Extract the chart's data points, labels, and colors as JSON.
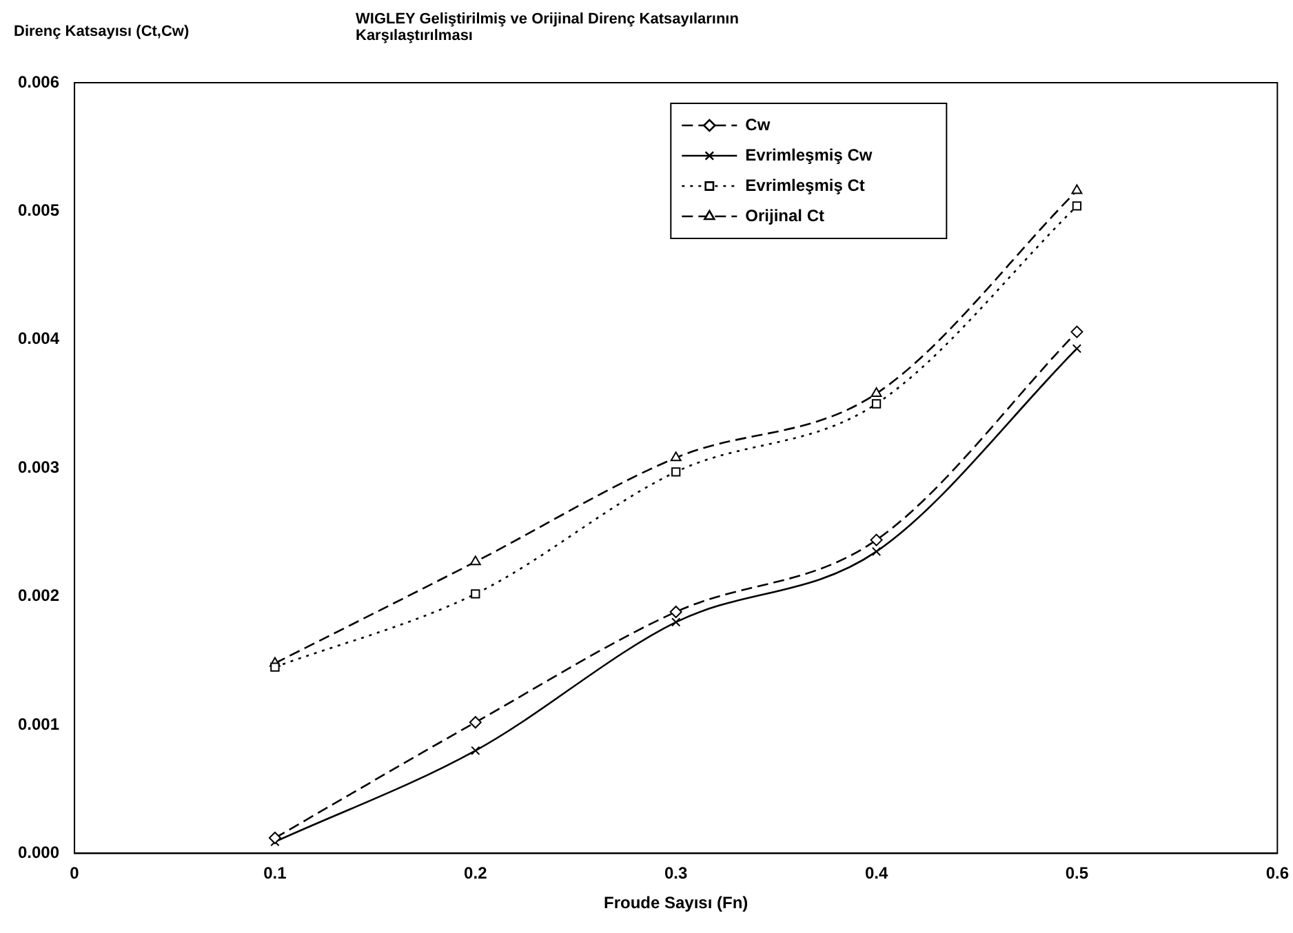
{
  "chart_data": {
    "type": "line",
    "title": "WIGLEY Geliştirilmiş ve Orijinal Direnç Katsayılarının Karşılaştırılması",
    "xlabel": "Froude Sayısı (Fn)",
    "ylabel": "Direnç Katsayısı (Ct,Cw)",
    "x": [
      0.1,
      0.2,
      0.3,
      0.4,
      0.5
    ],
    "series": [
      {
        "name": "Cw",
        "color": "#000000",
        "marker": "diamond",
        "line_style": "dashed",
        "values": [
          0.00012,
          0.00102,
          0.00188,
          0.00244,
          0.00406
        ]
      },
      {
        "name": "Evrimleşmiş Cw",
        "color": "#000000",
        "marker": "cross",
        "line_style": "solid",
        "values": [
          9e-05,
          0.0008,
          0.0018,
          0.00235,
          0.00393
        ]
      },
      {
        "name": "Evrimleşmiş Ct",
        "color": "#000000",
        "marker": "square",
        "line_style": "dotted",
        "values": [
          0.00145,
          0.00202,
          0.00297,
          0.0035,
          0.00504
        ]
      },
      {
        "name": "Orijinal Ct",
        "color": "#000000",
        "marker": "triangle",
        "line_style": "dashed",
        "values": [
          0.00148,
          0.00227,
          0.00308,
          0.00358,
          0.00516
        ]
      }
    ],
    "xlim": [
      0,
      0.6
    ],
    "xticks": [
      0,
      0.1,
      0.2,
      0.3,
      0.4,
      0.5,
      0.6
    ],
    "ylim": [
      0,
      0.006
    ],
    "yticks": [
      {
        "value": 0,
        "label": "0.000"
      },
      {
        "value": 0.001,
        "label": "0.001"
      },
      {
        "value": 0.002,
        "label": "0.002"
      },
      {
        "value": 0.003,
        "label": "0.003"
      },
      {
        "value": 0.004,
        "label": "0.004"
      },
      {
        "value": 0.005,
        "label": "0.005"
      },
      {
        "value": 0.006,
        "label": "0.006"
      }
    ],
    "grid": false,
    "legend": "top right"
  }
}
